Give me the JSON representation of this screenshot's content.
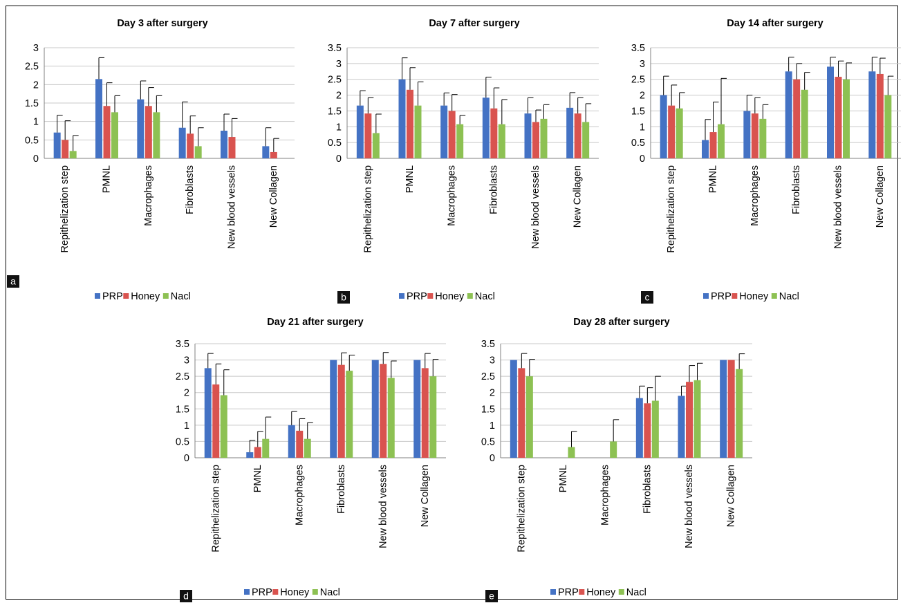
{
  "figure": {
    "colors": {
      "PRP": "#4472C4",
      "Honey": "#D9534F",
      "Nacl": "#8DC153",
      "grid": "#c8c8c8",
      "axis": "#808080",
      "text": "#000000"
    }
  },
  "chart_data": [
    {
      "panel": "a",
      "type": "bar",
      "title": "Day 3 after surgery",
      "categories": [
        "Repithelization step",
        "PMNL",
        "Macrophages",
        "Fibroblasts",
        "New blood vessels",
        "New Collagen"
      ],
      "ylim": [
        0,
        3
      ],
      "yticks": [
        "0",
        "0.5",
        "1",
        "1.5",
        "2",
        "2.5",
        "3"
      ],
      "legend": "bottom",
      "series": [
        {
          "name": "PRP",
          "values": [
            0.7,
            2.15,
            1.6,
            0.83,
            0.75,
            0.33
          ],
          "errors": [
            0.47,
            0.58,
            0.5,
            0.7,
            0.45,
            0.5
          ]
        },
        {
          "name": "Honey",
          "values": [
            0.5,
            1.42,
            1.42,
            0.67,
            0.58,
            0.17
          ],
          "errors": [
            0.52,
            0.63,
            0.5,
            0.48,
            0.5,
            0.37
          ]
        },
        {
          "name": "Nacl",
          "values": [
            0.2,
            1.25,
            1.25,
            0.33,
            0,
            0
          ],
          "errors": [
            0.42,
            0.45,
            0.45,
            0.5,
            0,
            0
          ]
        }
      ]
    },
    {
      "panel": "b",
      "type": "bar",
      "title": "Day 7 after surgery",
      "categories": [
        "Repithelization step",
        "PMNL",
        "Macrophages",
        "Fibroblasts",
        "New blood vessels",
        "New Collagen"
      ],
      "ylim": [
        0,
        3.5
      ],
      "yticks": [
        "0",
        "0.5",
        "1",
        "1.5",
        "2",
        "2.5",
        "3",
        "3.5"
      ],
      "legend": "bottom",
      "series": [
        {
          "name": "PRP",
          "values": [
            1.67,
            2.5,
            1.67,
            1.92,
            1.42,
            1.6
          ],
          "errors": [
            0.47,
            0.68,
            0.4,
            0.65,
            0.5,
            0.48
          ]
        },
        {
          "name": "Honey",
          "values": [
            1.42,
            2.17,
            1.5,
            1.58,
            1.15,
            1.42
          ],
          "errors": [
            0.5,
            0.7,
            0.52,
            0.65,
            0.38,
            0.5
          ]
        },
        {
          "name": "Nacl",
          "values": [
            0.8,
            1.67,
            1.08,
            1.08,
            1.25,
            1.15
          ],
          "errors": [
            0.6,
            0.75,
            0.28,
            0.78,
            0.45,
            0.58
          ]
        }
      ]
    },
    {
      "panel": "c",
      "type": "bar",
      "title": "Day 14 after surgery",
      "categories": [
        "Repithelization step",
        "PMNL",
        "Macrophages",
        "Fibroblasts",
        "New blood vessels",
        "New Collagen"
      ],
      "ylim": [
        0,
        3.5
      ],
      "yticks": [
        "0",
        "0.5",
        "1",
        "1.5",
        "2",
        "2.5",
        "3",
        "3.5"
      ],
      "legend": "bottom",
      "series": [
        {
          "name": "PRP",
          "values": [
            2.0,
            0.58,
            1.5,
            2.75,
            2.9,
            2.75
          ],
          "errors": [
            0.6,
            0.65,
            0.5,
            0.45,
            0.3,
            0.45
          ]
        },
        {
          "name": "Honey",
          "values": [
            1.67,
            0.83,
            1.42,
            2.5,
            2.58,
            2.67
          ],
          "errors": [
            0.65,
            0.95,
            0.5,
            0.5,
            0.5,
            0.5
          ]
        },
        {
          "name": "Nacl",
          "values": [
            1.58,
            1.08,
            1.25,
            2.17,
            2.5,
            2.0
          ],
          "errors": [
            0.5,
            1.45,
            0.45,
            0.55,
            0.52,
            0.6
          ]
        }
      ]
    },
    {
      "panel": "d",
      "type": "bar",
      "title": "Day 21 after surgery",
      "categories": [
        "Repithelization step",
        "PMNL",
        "Macrophages",
        "Fibroblasts",
        "New blood vessels",
        "New Collagen"
      ],
      "ylim": [
        0,
        3.5
      ],
      "yticks": [
        "0",
        "0.5",
        "1",
        "1.5",
        "2",
        "2.5",
        "3",
        "3.5"
      ],
      "legend": "bottom",
      "series": [
        {
          "name": "PRP",
          "values": [
            2.75,
            0.17,
            1.0,
            3.0,
            3.0,
            3.0
          ],
          "errors": [
            0.45,
            0.37,
            0.42,
            0,
            0,
            0
          ]
        },
        {
          "name": "Honey",
          "values": [
            2.25,
            0.33,
            0.83,
            2.85,
            2.88,
            2.75
          ],
          "errors": [
            0.63,
            0.48,
            0.37,
            0.37,
            0.35,
            0.45
          ]
        },
        {
          "name": "Nacl",
          "values": [
            1.92,
            0.58,
            0.58,
            2.67,
            2.45,
            2.5
          ],
          "errors": [
            0.78,
            0.67,
            0.5,
            0.48,
            0.52,
            0.52
          ]
        }
      ]
    },
    {
      "panel": "e",
      "type": "bar",
      "title": "Day 28 after surgery",
      "categories": [
        "Repithelization step",
        "PMNL",
        "Macrophages",
        "Fibroblasts",
        "New blood vessels",
        "New Collagen"
      ],
      "ylim": [
        0,
        3.5
      ],
      "yticks": [
        "0",
        "0.5",
        "1",
        "1.5",
        "2",
        "2.5",
        "3",
        "3.5"
      ],
      "legend": "bottom",
      "series": [
        {
          "name": "PRP",
          "values": [
            3.0,
            0,
            0,
            1.83,
            1.9,
            3.0
          ],
          "errors": [
            0,
            0,
            0,
            0.37,
            0.3,
            0
          ]
        },
        {
          "name": "Honey",
          "values": [
            2.75,
            0,
            0,
            1.67,
            2.33,
            3.0
          ],
          "errors": [
            0.45,
            0,
            0,
            0.48,
            0.5,
            0
          ]
        },
        {
          "name": "Nacl",
          "values": [
            2.5,
            0.33,
            0.5,
            1.75,
            2.38,
            2.72
          ],
          "errors": [
            0.52,
            0.48,
            0.67,
            0.75,
            0.52,
            0.47
          ]
        }
      ]
    }
  ]
}
